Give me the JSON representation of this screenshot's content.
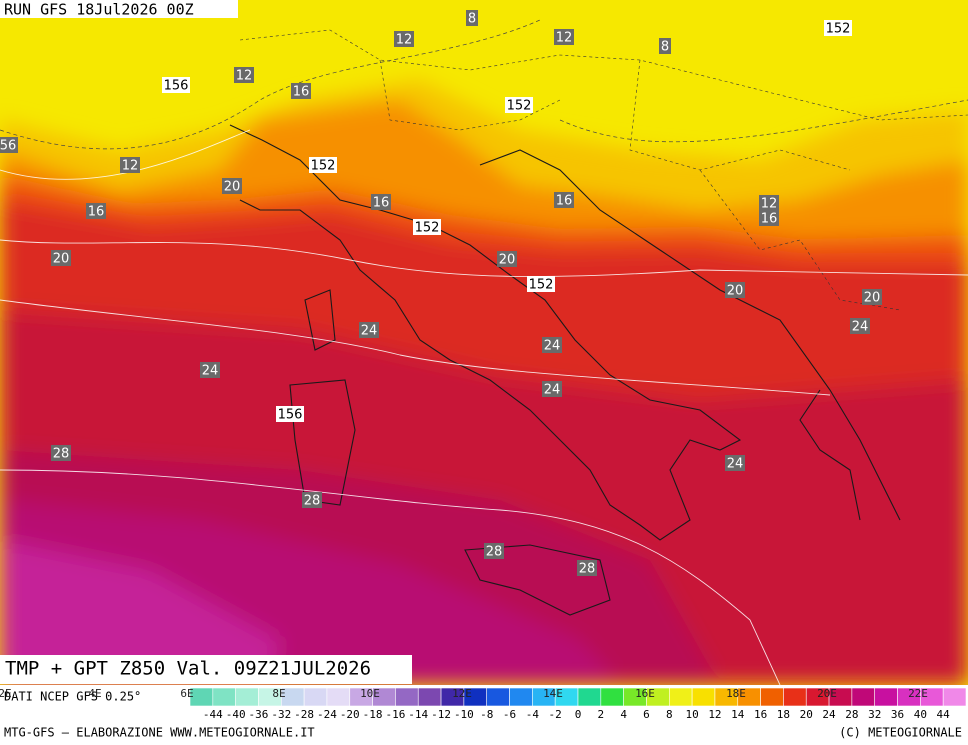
{
  "header": {
    "run": "RUN GFS 18Jul2026 00Z"
  },
  "footer": {
    "title": "TMP + GPT Z850 Val. 09Z21JUL2026",
    "source": "DATI NCEP GFS 0.25°",
    "credit_left": "MTG-GFS — ELABORAZIONE WWW.METEOGIORNALE.IT",
    "credit_right": "(C) METEOGIORNALE"
  },
  "longitudes": [
    "2E",
    "4E",
    "6E",
    "8E",
    "10E",
    "12E",
    "14E",
    "16E",
    "18E",
    "20E",
    "22E"
  ],
  "colorbar": {
    "labels": [
      -44,
      -40,
      -36,
      -32,
      -28,
      -24,
      -20,
      -18,
      -16,
      -14,
      -12,
      -10,
      -8,
      -6,
      -4,
      -2,
      0,
      2,
      4,
      6,
      8,
      10,
      12,
      14,
      16,
      18,
      20,
      24,
      28,
      32,
      36,
      40,
      44
    ],
    "colors": [
      "#5fd6b4",
      "#7fe3c4",
      "#a4eed6",
      "#c6f5e6",
      "#c8d8f0",
      "#d8d8f4",
      "#e4dcf6",
      "#c8a8e4",
      "#b088d4",
      "#9468c4",
      "#7c48b0",
      "#4028a8",
      "#1030c0",
      "#1858e0",
      "#2088f0",
      "#28b4f4",
      "#30d8f0",
      "#20d890",
      "#30e040",
      "#78e828",
      "#c0f020",
      "#f0f018",
      "#f8e000",
      "#f8b800",
      "#f89000",
      "#f06000",
      "#e83018",
      "#d81830",
      "#c80c50",
      "#c00878",
      "#c810a0",
      "#d830c0",
      "#e858d8",
      "#f088e8"
    ]
  },
  "contours": {
    "temperature": [
      "8",
      "12",
      "12",
      "8",
      "12",
      "16",
      "56",
      "12",
      "20",
      "16",
      "16",
      "16",
      "12",
      "16",
      "20",
      "20",
      "20",
      "20",
      "24",
      "24",
      "24",
      "24",
      "24",
      "28",
      "24",
      "28",
      "28",
      "28"
    ],
    "geopotential": [
      "152",
      "156",
      "152",
      "152",
      "152",
      "152",
      "156"
    ]
  }
}
